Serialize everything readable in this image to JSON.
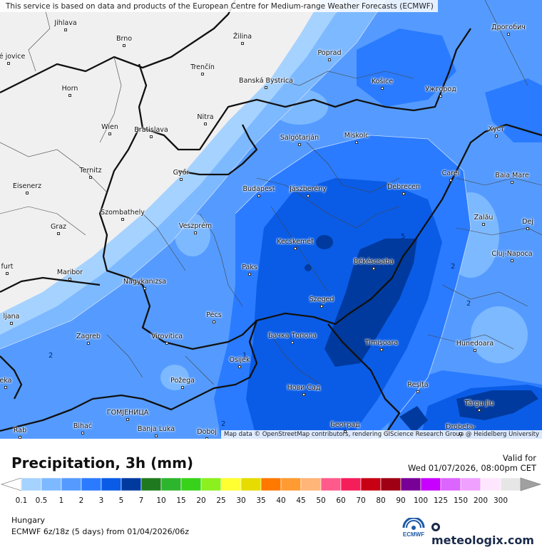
{
  "notice": "This service is based on data and products of the European Centre for Medium-range Weather Forecasts (ECMWF)",
  "attribution": "Map data © OpenStreetMap contributors, rendering GIScience Research Group @ Heidelberg University",
  "title": "Precipitation, 3h (mm)",
  "valid_label": "Valid for",
  "valid_value": "Wed 01/07/2026, 08:00pm CET",
  "region": "Hungary",
  "model": "ECMWF 6z/18z (5 days) from 01/04/2026/06z",
  "brand": "meteologix.com",
  "ecmwf_logo_text": "ECMWF",
  "legend": {
    "ticks": [
      "0.1",
      "0.5",
      "1",
      "2",
      "3",
      "5",
      "7",
      "10",
      "15",
      "20",
      "25",
      "30",
      "35",
      "40",
      "45",
      "50",
      "60",
      "70",
      "80",
      "90",
      "100",
      "125",
      "150",
      "200",
      "300"
    ],
    "colors": [
      "#a6d2ff",
      "#7db9ff",
      "#559bff",
      "#2a7bff",
      "#0a5ce6",
      "#003a9e",
      "#1f7a1f",
      "#2db52d",
      "#37d219",
      "#8cf01e",
      "#ffff32",
      "#e6dc00",
      "#ff7800",
      "#ff9b32",
      "#ffb478",
      "#ff5a8c",
      "#f51e5a",
      "#c80014",
      "#a00014",
      "#780096",
      "#c800ff",
      "#dc64ff",
      "#f0a0ff",
      "#ffe6ff",
      "#e6e6e6"
    ]
  },
  "contour_labels": [
    "5",
    "2",
    "2",
    "1",
    "2",
    "2"
  ],
  "cities": [
    {
      "name": "Jihlava"
    },
    {
      "name": "Brno"
    },
    {
      "name": "Žilina"
    },
    {
      "name": "Poprad"
    },
    {
      "name": "Дрогобич"
    },
    {
      "name": "Trenčín"
    },
    {
      "name": "Banská Bystrica"
    },
    {
      "name": "Košice"
    },
    {
      "name": "Ужгород"
    },
    {
      "name": "Horn"
    },
    {
      "name": "Nitra"
    },
    {
      "name": "Хуст"
    },
    {
      "name": "Wien"
    },
    {
      "name": "Bratislava"
    },
    {
      "name": "Salgótarján"
    },
    {
      "name": "Miskolc"
    },
    {
      "name": "Ternitz"
    },
    {
      "name": "Győr"
    },
    {
      "name": "Carei"
    },
    {
      "name": "Baia Mare"
    },
    {
      "name": "Eisenerz"
    },
    {
      "name": "Budapest"
    },
    {
      "name": "Jászberény"
    },
    {
      "name": "Debrecen"
    },
    {
      "name": "Szombathely"
    },
    {
      "name": "Zalău"
    },
    {
      "name": "Graz"
    },
    {
      "name": "Veszprém"
    },
    {
      "name": "Kecskemét"
    },
    {
      "name": "Dej"
    },
    {
      "name": "Cluj-Napoca"
    },
    {
      "name": "Paks"
    },
    {
      "name": "Békéscsaba"
    },
    {
      "name": "Maribor"
    },
    {
      "name": "Nagykanizsa"
    },
    {
      "name": "Szeged"
    },
    {
      "name": "Pécs"
    },
    {
      "name": "ljana"
    },
    {
      "name": "Zagreb"
    },
    {
      "name": "Virovitica"
    },
    {
      "name": "Бачка Топола"
    },
    {
      "name": "Timișoara"
    },
    {
      "name": "Hunedoara"
    },
    {
      "name": "Osijek"
    },
    {
      "name": "Požega"
    },
    {
      "name": "Reșița"
    },
    {
      "name": "Нови Сад"
    },
    {
      "name": "Târgu Jiu"
    },
    {
      "name": "ГОМЈЕНИЦА"
    },
    {
      "name": "Bihać"
    },
    {
      "name": "Banja Luka"
    },
    {
      "name": "Doboj"
    },
    {
      "name": "Београд"
    },
    {
      "name": "Drobeta-"
    },
    {
      "name": "Rab"
    },
    {
      "name": "eka"
    },
    {
      "name": "furt"
    },
    {
      "name": "ské jovice"
    }
  ]
}
